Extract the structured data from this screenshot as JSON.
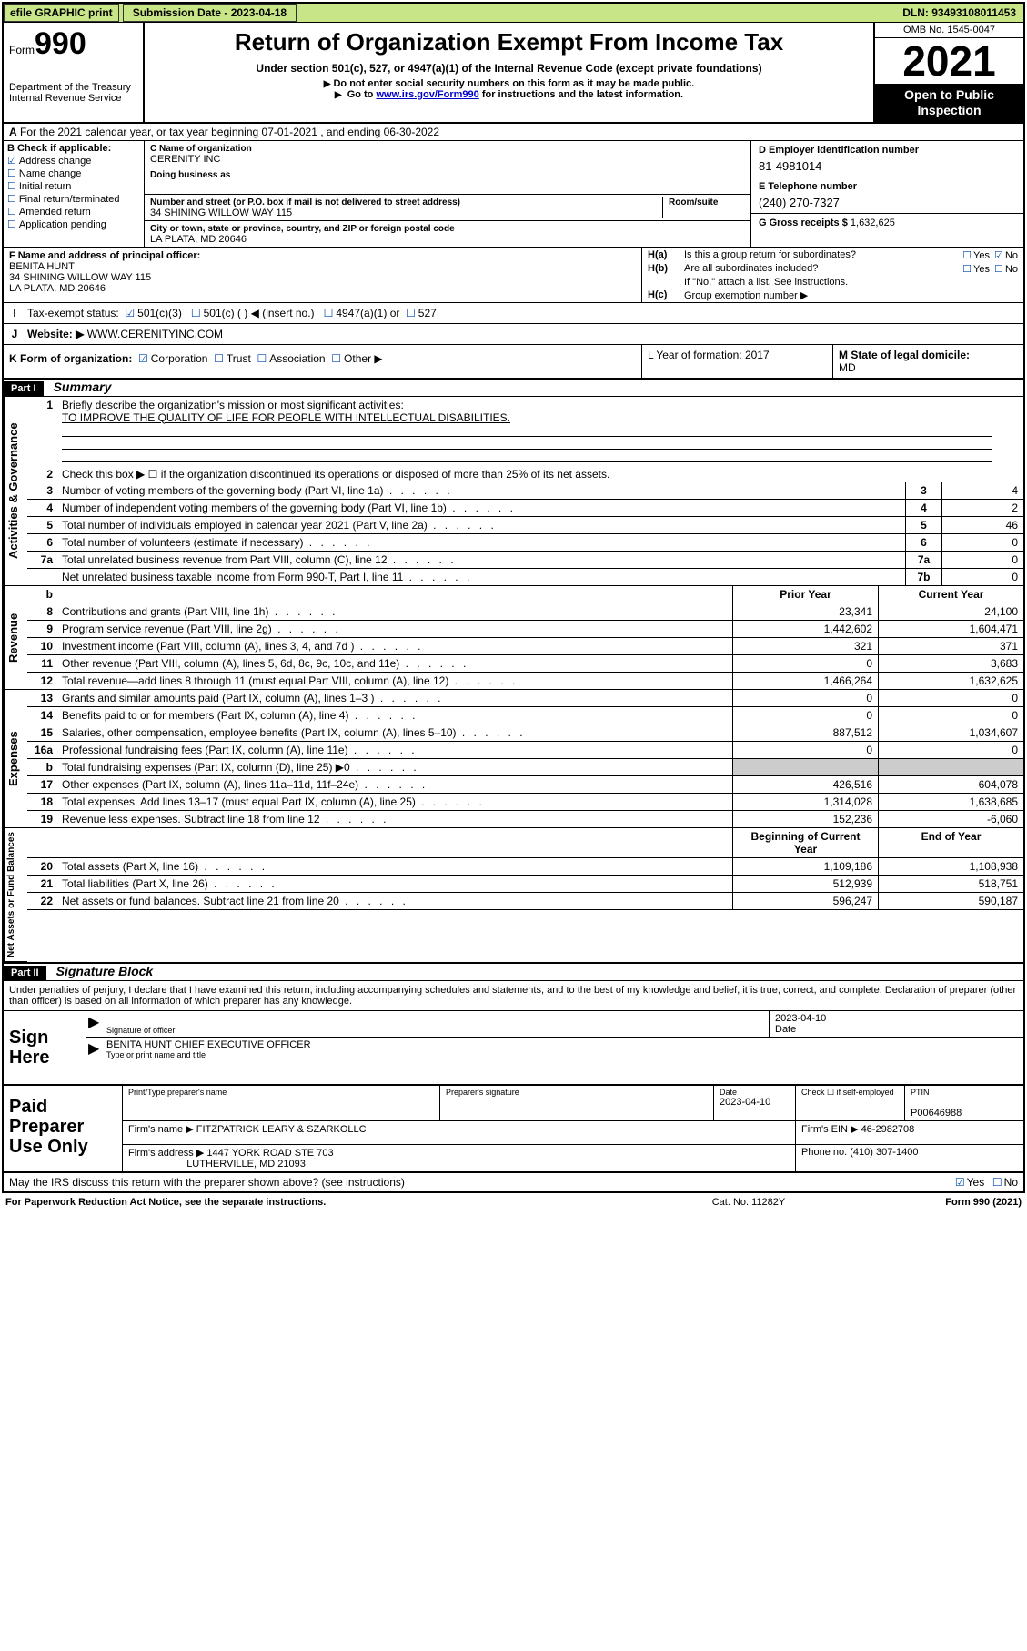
{
  "topbar": {
    "efile_btn": "efile GRAPHIC print",
    "sub_label": "Submission Date - 2023-04-18",
    "dln": "DLN: 93493108011453"
  },
  "header": {
    "form_prefix": "Form",
    "form_num": "990",
    "dept": "Department of the Treasury",
    "irs": "Internal Revenue Service",
    "title": "Return of Organization Exempt From Income Tax",
    "sub1": "Under section 501(c), 527, or 4947(a)(1) of the Internal Revenue Code (except private foundations)",
    "sub2": "Do not enter social security numbers on this form as it may be made public.",
    "sub3_pre": "Go to ",
    "sub3_link": "www.irs.gov/Form990",
    "sub3_post": " for instructions and the latest information.",
    "omb": "OMB No. 1545-0047",
    "year": "2021",
    "open1": "Open to Public",
    "open2": "Inspection"
  },
  "A": {
    "text": "For the 2021 calendar year, or tax year beginning 07-01-2021    , and ending 06-30-2022"
  },
  "B": {
    "label": "Check if applicable:",
    "opts": [
      "Address change",
      "Name change",
      "Initial return",
      "Final return/terminated",
      "Amended return",
      "Application pending"
    ],
    "checked_idx": 0
  },
  "C": {
    "name_lbl": "C Name of organization",
    "name": "CERENITY INC",
    "dba_lbl": "Doing business as",
    "dba": "",
    "street_lbl": "Number and street (or P.O. box if mail is not delivered to street address)",
    "street": "34 SHINING WILLOW WAY 115",
    "room_lbl": "Room/suite",
    "room": "",
    "city_lbl": "City or town, state or province, country, and ZIP or foreign postal code",
    "city": "LA PLATA, MD  20646"
  },
  "D": {
    "label": "D Employer identification number",
    "value": "81-4981014"
  },
  "E": {
    "label": "E Telephone number",
    "value": "(240) 270-7327"
  },
  "G": {
    "label": "G Gross receipts $",
    "value": "1,632,625"
  },
  "F": {
    "label": "F  Name and address of principal officer:",
    "name": "BENITA HUNT",
    "addr1": "34 SHINING WILLOW WAY 115",
    "addr2": "LA PLATA, MD  20646"
  },
  "H": {
    "a_q": "Is this a group return for subordinates?",
    "a_yes": false,
    "a_no": true,
    "b_q": "Are all subordinates included?",
    "b_note": "If \"No,\" attach a list. See instructions.",
    "c_q": "Group exemption number ▶"
  },
  "I": {
    "label": "Tax-exempt status:",
    "opts": [
      "501(c)(3)",
      "501(c) (  ) ◀ (insert no.)",
      "4947(a)(1) or",
      "527"
    ]
  },
  "J": {
    "label": "Website: ▶",
    "value": "WWW.CERENITYINC.COM"
  },
  "K": {
    "label": "K Form of organization:",
    "opts": [
      "Corporation",
      "Trust",
      "Association",
      "Other ▶"
    ]
  },
  "L": {
    "label": "L Year of formation: 2017"
  },
  "M": {
    "label": "M State of legal domicile:",
    "value": "MD"
  },
  "P1": {
    "title": "Summary",
    "mission_lbl": "Briefly describe the organization's mission or most significant activities:",
    "mission": "TO IMPROVE THE QUALITY OF LIFE FOR PEOPLE WITH INTELLECTUAL DISABILITIES.",
    "line2": "Check this box ▶ ☐  if the organization discontinued its operations or disposed of more than 25% of its net assets.",
    "rows_top": [
      {
        "n": "3",
        "t": "Number of voting members of the governing body (Part VI, line 1a)",
        "c": "3",
        "v": "4"
      },
      {
        "n": "4",
        "t": "Number of independent voting members of the governing body (Part VI, line 1b)",
        "c": "4",
        "v": "2"
      },
      {
        "n": "5",
        "t": "Total number of individuals employed in calendar year 2021 (Part V, line 2a)",
        "c": "5",
        "v": "46"
      },
      {
        "n": "6",
        "t": "Total number of volunteers (estimate if necessary)",
        "c": "6",
        "v": "0"
      },
      {
        "n": "7a",
        "t": "Total unrelated business revenue from Part VIII, column (C), line 12",
        "c": "7a",
        "v": "0"
      },
      {
        "n": "",
        "t": "Net unrelated business taxable income from Form 990-T, Part I, line 11",
        "c": "7b",
        "v": "0"
      }
    ],
    "col_hdr_b": "b",
    "col_hdr_prior": "Prior Year",
    "col_hdr_curr": "Current Year",
    "revenue": [
      {
        "n": "8",
        "t": "Contributions and grants (Part VIII, line 1h)",
        "p": "23,341",
        "c": "24,100"
      },
      {
        "n": "9",
        "t": "Program service revenue (Part VIII, line 2g)",
        "p": "1,442,602",
        "c": "1,604,471"
      },
      {
        "n": "10",
        "t": "Investment income (Part VIII, column (A), lines 3, 4, and 7d )",
        "p": "321",
        "c": "371"
      },
      {
        "n": "11",
        "t": "Other revenue (Part VIII, column (A), lines 5, 6d, 8c, 9c, 10c, and 11e)",
        "p": "0",
        "c": "3,683"
      },
      {
        "n": "12",
        "t": "Total revenue—add lines 8 through 11 (must equal Part VIII, column (A), line 12)",
        "p": "1,466,264",
        "c": "1,632,625"
      }
    ],
    "expenses": [
      {
        "n": "13",
        "t": "Grants and similar amounts paid (Part IX, column (A), lines 1–3 )",
        "p": "0",
        "c": "0"
      },
      {
        "n": "14",
        "t": "Benefits paid to or for members (Part IX, column (A), line 4)",
        "p": "0",
        "c": "0"
      },
      {
        "n": "15",
        "t": "Salaries, other compensation, employee benefits (Part IX, column (A), lines 5–10)",
        "p": "887,512",
        "c": "1,034,607"
      },
      {
        "n": "16a",
        "t": "Professional fundraising fees (Part IX, column (A), line 11e)",
        "p": "0",
        "c": "0"
      },
      {
        "n": "b",
        "t": "Total fundraising expenses (Part IX, column (D), line 25) ▶0",
        "p": "",
        "c": "",
        "grey": true
      },
      {
        "n": "17",
        "t": "Other expenses (Part IX, column (A), lines 11a–11d, 11f–24e)",
        "p": "426,516",
        "c": "604,078"
      },
      {
        "n": "18",
        "t": "Total expenses. Add lines 13–17 (must equal Part IX, column (A), line 25)",
        "p": "1,314,028",
        "c": "1,638,685"
      },
      {
        "n": "19",
        "t": "Revenue less expenses. Subtract line 18 from line 12",
        "p": "152,236",
        "c": "-6,060"
      }
    ],
    "na_hdr_beg": "Beginning of Current Year",
    "na_hdr_end": "End of Year",
    "netassets": [
      {
        "n": "20",
        "t": "Total assets (Part X, line 16)",
        "p": "1,109,186",
        "c": "1,108,938"
      },
      {
        "n": "21",
        "t": "Total liabilities (Part X, line 26)",
        "p": "512,939",
        "c": "518,751"
      },
      {
        "n": "22",
        "t": "Net assets or fund balances. Subtract line 21 from line 20",
        "p": "596,247",
        "c": "590,187"
      }
    ],
    "tabs": [
      "Activities & Governance",
      "Revenue",
      "Expenses",
      "Net Assets or Fund Balances"
    ]
  },
  "P2": {
    "title": "Signature Block",
    "intro": "Under penalties of perjury, I declare that I have examined this return, including accompanying schedules and statements, and to the best of my knowledge and belief, it is true, correct, and complete. Declaration of preparer (other than officer) is based on all information of which preparer has any knowledge.",
    "sign_here": "Sign Here",
    "sig_of_officer": "Signature of officer",
    "sig_date": "2023-04-10",
    "date_lbl": "Date",
    "officer": "BENITA HUNT  CHIEF EXECUTIVE OFFICER",
    "type_name": "Type or print name and title",
    "paid_prep": "Paid Preparer Use Only",
    "prep_cols": [
      "Print/Type preparer's name",
      "Preparer's signature",
      "Date",
      "",
      "PTIN"
    ],
    "prep_date": "2023-04-10",
    "prep_check": "Check ☐ if self-employed",
    "ptin": "P00646988",
    "firm_name_lbl": "Firm's name     ▶",
    "firm_name": "FITZPATRICK LEARY & SZARKOLLC",
    "firm_ein_lbl": "Firm's EIN ▶",
    "firm_ein": "46-2982708",
    "firm_addr_lbl": "Firm's address ▶",
    "firm_addr1": "1447 YORK ROAD STE 703",
    "firm_addr2": "LUTHERVILLE, MD  21093",
    "phone_lbl": "Phone no.",
    "phone": "(410) 307-1400",
    "may_irs": "May the IRS discuss this return with the preparer shown above? (see instructions)",
    "may_yes": true
  },
  "footer": {
    "left": "For Paperwork Reduction Act Notice, see the separate instructions.",
    "mid": "Cat. No. 11282Y",
    "right": "Form 990 (2021)"
  }
}
